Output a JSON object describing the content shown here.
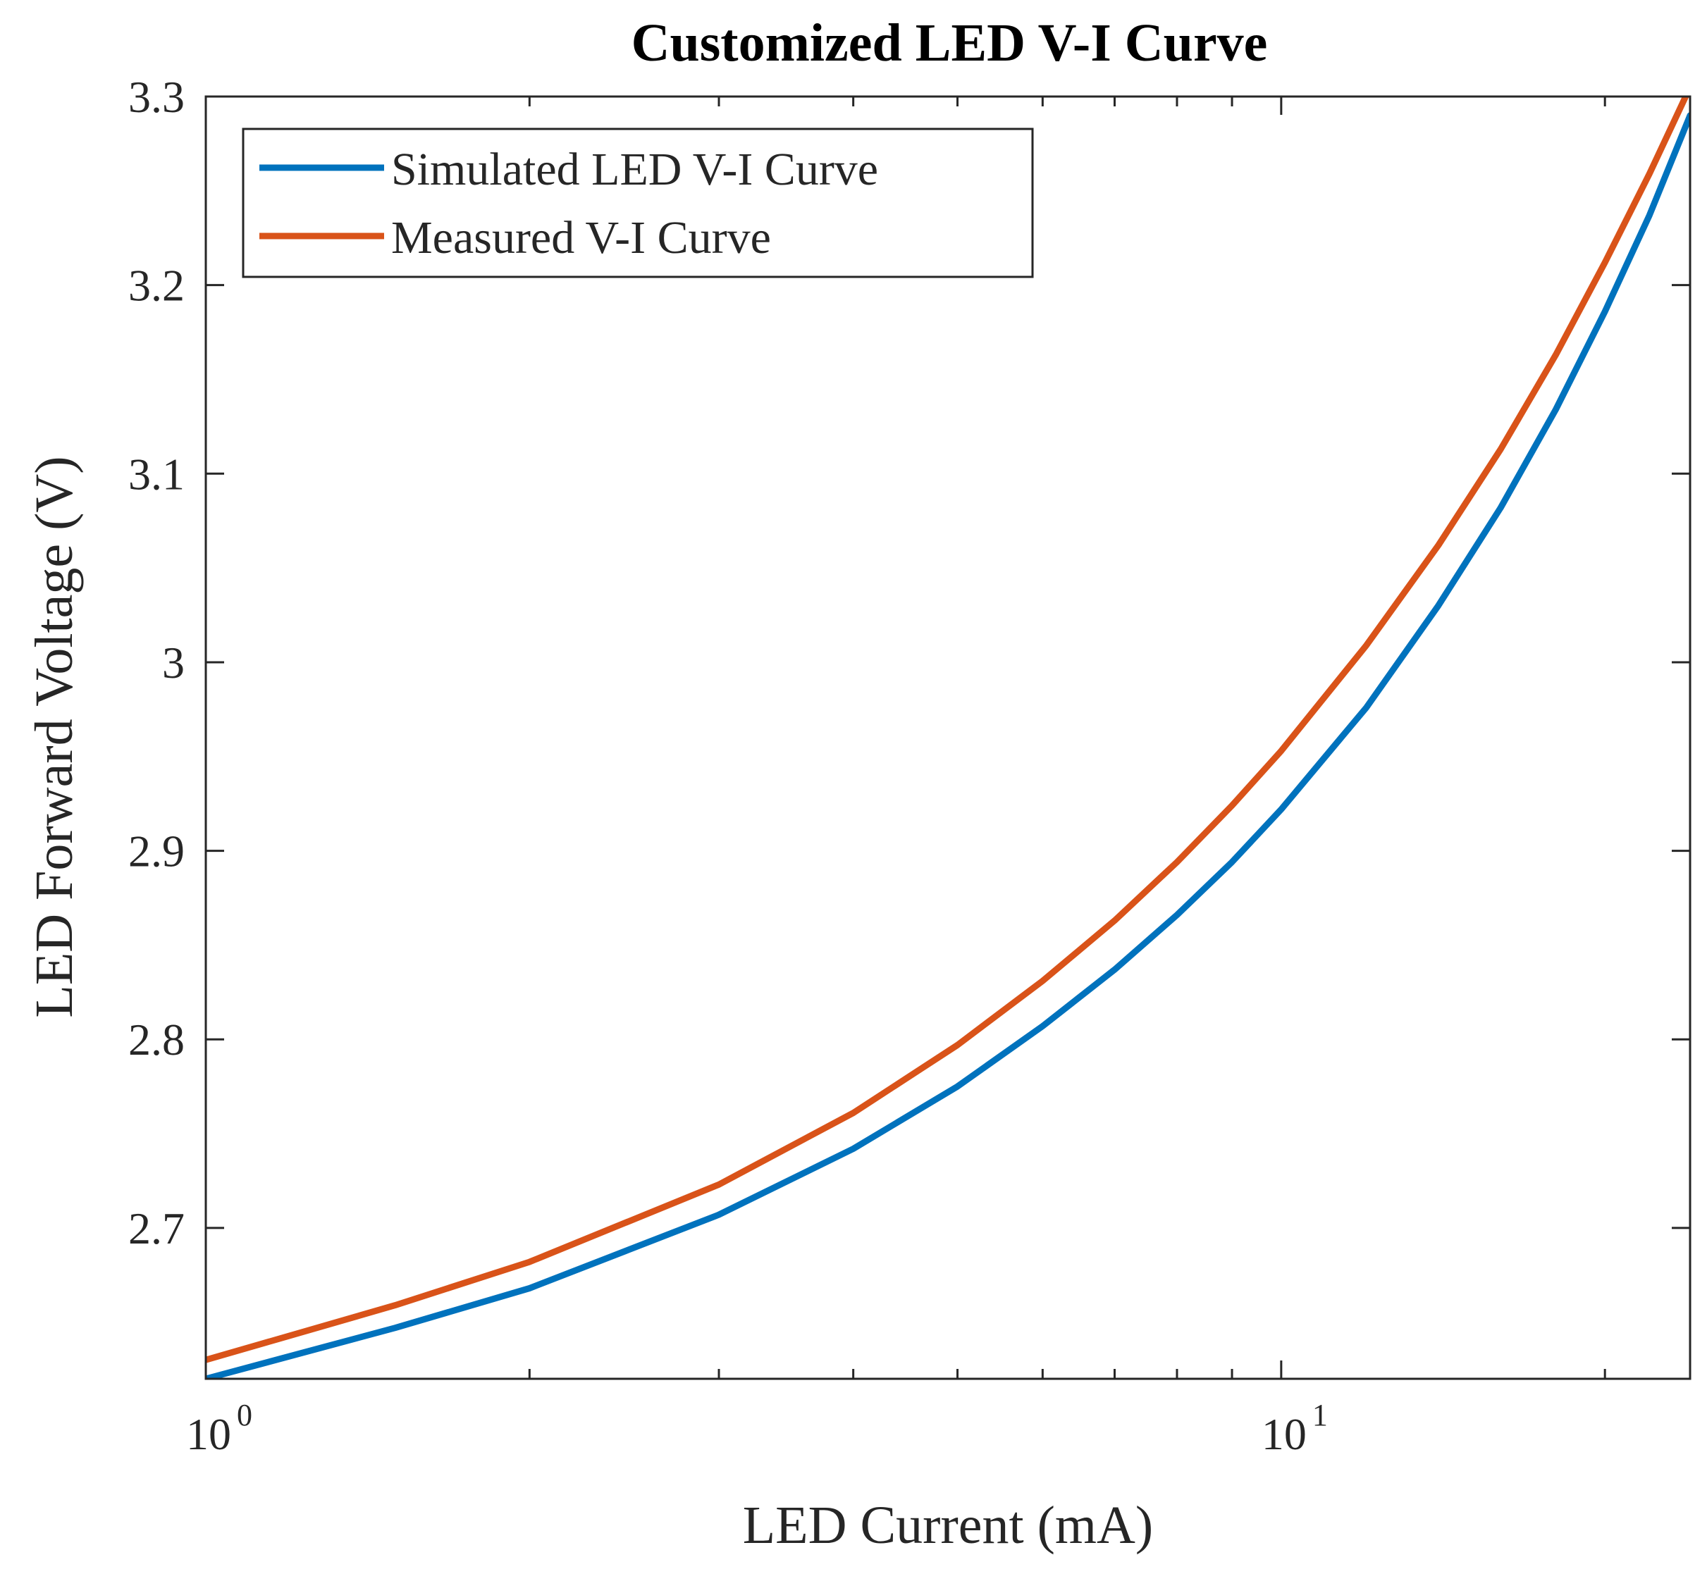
{
  "chart_data": {
    "type": "line",
    "title": "Customized LED V-I Curve",
    "xlabel": "LED Current (mA)",
    "ylabel": "LED Forward Voltage (V)",
    "xscale": "log",
    "xlim": [
      1,
      24
    ],
    "ylim": [
      2.62,
      3.3
    ],
    "xticks": [
      {
        "value": 1,
        "base": "10",
        "exp": "0"
      },
      {
        "value": 10,
        "base": "10",
        "exp": "1"
      }
    ],
    "yticks": [
      {
        "value": 2.7,
        "label": "2.7"
      },
      {
        "value": 2.8,
        "label": "2.8"
      },
      {
        "value": 2.9,
        "label": "2.9"
      },
      {
        "value": 3.0,
        "label": "3"
      },
      {
        "value": 3.1,
        "label": "3.1"
      },
      {
        "value": 3.2,
        "label": "3.2"
      },
      {
        "value": 3.3,
        "label": "3.3"
      }
    ],
    "grid": false,
    "legend": "top-left",
    "series": [
      {
        "name": "Simulated LED V-I Curve",
        "color": "#0072BD",
        "x": [
          1,
          1.5,
          2,
          3,
          4,
          5,
          6,
          7,
          8,
          9,
          10,
          12,
          14,
          16,
          18,
          20,
          22,
          24
        ],
        "y": [
          2.62,
          2.647,
          2.668,
          2.707,
          2.742,
          2.775,
          2.807,
          2.837,
          2.866,
          2.894,
          2.922,
          2.976,
          3.03,
          3.082,
          3.134,
          3.186,
          3.237,
          3.29
        ]
      },
      {
        "name": "Measured V-I Curve",
        "color": "#D95319",
        "x": [
          1,
          1.5,
          2,
          3,
          4,
          5,
          6,
          7,
          8,
          9,
          10,
          12,
          14,
          16,
          18,
          20,
          22,
          24
        ],
        "y": [
          2.63,
          2.659,
          2.682,
          2.723,
          2.761,
          2.797,
          2.831,
          2.863,
          2.894,
          2.924,
          2.953,
          3.009,
          3.062,
          3.113,
          3.163,
          3.212,
          3.259,
          3.305
        ]
      }
    ]
  }
}
